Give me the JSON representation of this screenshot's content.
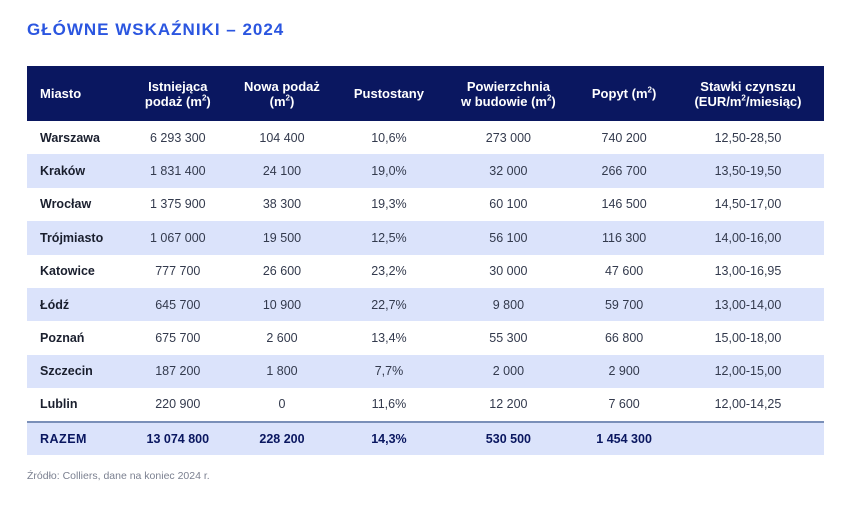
{
  "title": "GŁÓWNE WSKAŹNIKI – 2024",
  "headers": {
    "city": "Miasto",
    "existing": [
      "Istniejąca",
      "podaż (m",
      "2",
      ")"
    ],
    "new_supply": [
      "Nowa podaż",
      "(m",
      "2",
      ")"
    ],
    "vacancy": "Pustostany",
    "under_construction": [
      "Powierzchnia",
      "w budowie (m",
      "2",
      ")"
    ],
    "demand": [
      "Popyt (m",
      "2",
      ")"
    ],
    "rents": [
      "Stawki czynszu",
      "(EUR/m",
      "2",
      "/miesiąc)"
    ]
  },
  "rows": [
    {
      "city": "Warszawa",
      "existing": "6 293 300",
      "new_supply": "104 400",
      "vacancy": "10,6%",
      "under_construction": "273 000",
      "demand": "740 200",
      "rents": "12,50-28,50"
    },
    {
      "city": "Kraków",
      "existing": "1 831 400",
      "new_supply": "24 100",
      "vacancy": "19,0%",
      "under_construction": "32 000",
      "demand": "266 700",
      "rents": "13,50-19,50"
    },
    {
      "city": "Wrocław",
      "existing": "1 375 900",
      "new_supply": "38 300",
      "vacancy": "19,3%",
      "under_construction": "60 100",
      "demand": "146 500",
      "rents": "14,50-17,00"
    },
    {
      "city": "Trójmiasto",
      "existing": "1 067 000",
      "new_supply": "19 500",
      "vacancy": "12,5%",
      "under_construction": "56 100",
      "demand": "116 300",
      "rents": "14,00-16,00"
    },
    {
      "city": "Katowice",
      "existing": "777 700",
      "new_supply": "26 600",
      "vacancy": "23,2%",
      "under_construction": "30 000",
      "demand": "47 600",
      "rents": "13,00-16,95"
    },
    {
      "city": "Łódź",
      "existing": "645 700",
      "new_supply": "10 900",
      "vacancy": "22,7%",
      "under_construction": "9 800",
      "demand": "59 700",
      "rents": "13,00-14,00"
    },
    {
      "city": "Poznań",
      "existing": "675 700",
      "new_supply": "2 600",
      "vacancy": "13,4%",
      "under_construction": "55 300",
      "demand": "66 800",
      "rents": "15,00-18,00"
    },
    {
      "city": "Szczecin",
      "existing": "187 200",
      "new_supply": "1 800",
      "vacancy": "7,7%",
      "under_construction": "2 000",
      "demand": "2 900",
      "rents": "12,00-15,00"
    },
    {
      "city": "Lublin",
      "existing": "220 900",
      "new_supply": "0",
      "vacancy": "11,6%",
      "under_construction": "12 200",
      "demand": "7 600",
      "rents": "12,00-14,25"
    }
  ],
  "total": {
    "city": "RAZEM",
    "existing": "13 074 800",
    "new_supply": "228 200",
    "vacancy": "14,3%",
    "under_construction": "530 500",
    "demand": "1 454 300",
    "rents": ""
  },
  "source": "Źródło: Colliers, dane na koniec 2024 r."
}
